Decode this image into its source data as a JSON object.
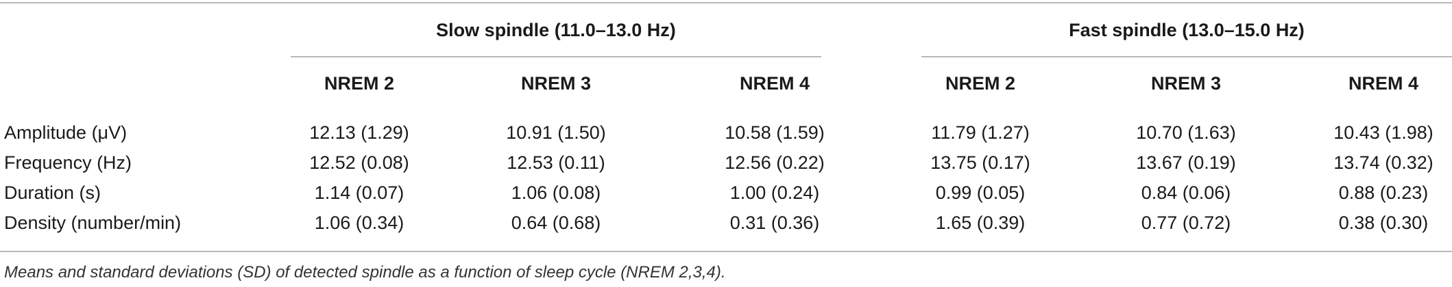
{
  "table": {
    "groups": [
      {
        "label": "Slow spindle (11.0–13.0 Hz)"
      },
      {
        "label": "Fast spindle (13.0–15.0 Hz)"
      }
    ],
    "columns": [
      "NREM 2",
      "NREM 3",
      "NREM 4",
      "NREM 2",
      "NREM 3",
      "NREM 4"
    ],
    "rows": [
      {
        "label": "Amplitude (μV)",
        "values": [
          "12.13 (1.29)",
          "10.91 (1.50)",
          "10.58 (1.59)",
          "11.79 (1.27)",
          "10.70 (1.63)",
          "10.43 (1.98)"
        ]
      },
      {
        "label": "Frequency (Hz)",
        "values": [
          "12.52 (0.08)",
          "12.53 (0.11)",
          "12.56 (0.22)",
          "13.75 (0.17)",
          "13.67 (0.19)",
          "13.74 (0.32)"
        ]
      },
      {
        "label": "Duration (s)",
        "values": [
          "1.14 (0.07)",
          "1.06 (0.08)",
          "1.00 (0.24)",
          "0.99 (0.05)",
          "0.84 (0.06)",
          "0.88 (0.23)"
        ]
      },
      {
        "label": "Density (number/min)",
        "values": [
          "1.06 (0.34)",
          "0.64 (0.68)",
          "0.31 (0.36)",
          "1.65 (0.39)",
          "0.77 (0.72)",
          "0.38 (0.30)"
        ]
      }
    ]
  },
  "caption": "Means and standard deviations (SD) of detected spindle as a function of sleep cycle (NREM 2,3,4)."
}
